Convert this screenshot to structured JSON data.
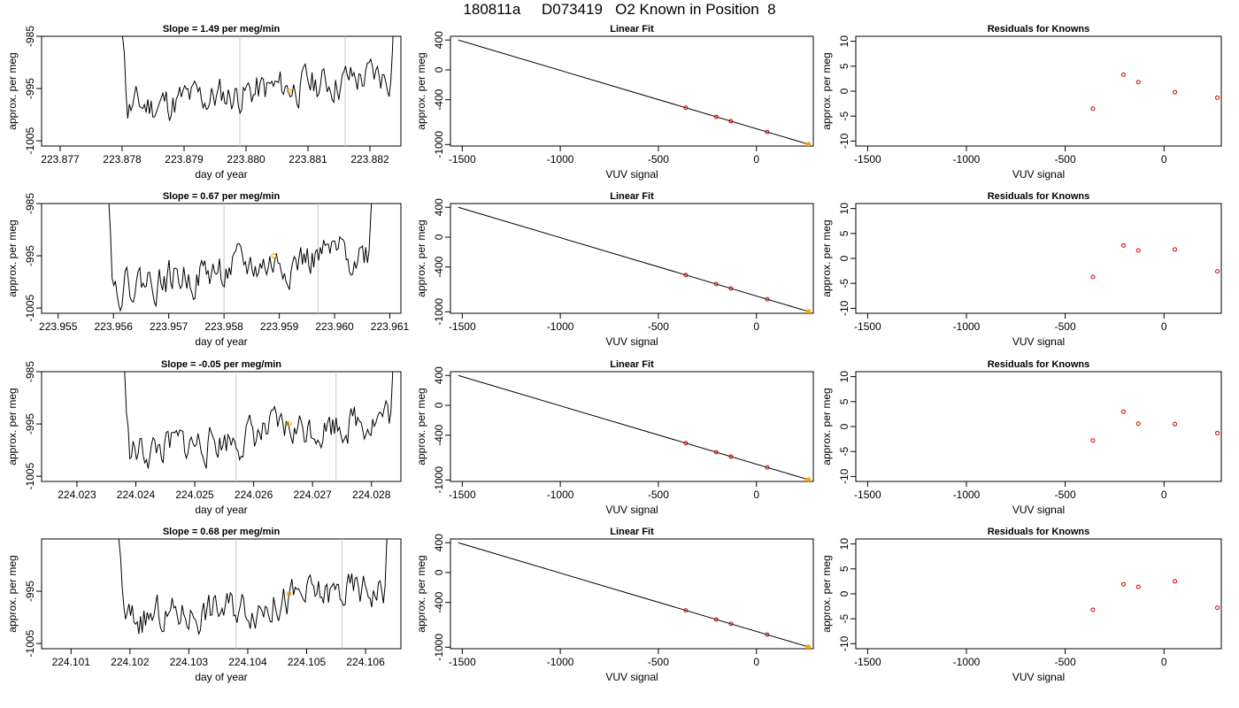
{
  "title": "180811a     D073419   O2 Known in Position  8",
  "colors": {
    "trace": "#000000",
    "gridline": "#c8c8c8",
    "marker": "#ffa500",
    "known": "#cc0000"
  },
  "chart_data": [
    {
      "type": "line",
      "panel": "timeseries-1",
      "title": "Slope =  1.49  per meg/min",
      "xlabel": "day of year",
      "ylabel": "approx. per meg",
      "x_ticks": [
        "223.877",
        "223.878",
        "223.879",
        "223.880",
        "223.881",
        "223.882"
      ],
      "xlim": [
        223.8767,
        223.8825
      ],
      "y_ticks": [
        "-985",
        "-995",
        "-1005"
      ],
      "ylim": [
        -1006,
        -985
      ],
      "windows": [
        223.8799,
        223.8816
      ],
      "marker": [
        223.8807,
        -995.5
      ],
      "series_x": [
        223.8779,
        223.8825
      ],
      "series_low": -999,
      "series_high": -992,
      "seed": 11
    },
    {
      "type": "line",
      "panel": "linear-fit-1",
      "title": "Linear Fit",
      "xlabel": "VUV signal",
      "ylabel": "approx. per meg",
      "x_ticks": [
        "-1500",
        "-1000",
        "-500",
        "0"
      ],
      "xlim": [
        -1560,
        290
      ],
      "y_ticks": [
        "400",
        "0",
        "-400",
        "-1000"
      ],
      "ylim": [
        -1020,
        450
      ],
      "line": [
        [
          -1520,
          400
        ],
        [
          270,
          -1000
        ]
      ],
      "knowns_x": [
        -360,
        -205,
        -130,
        55
      ],
      "marker_x": 265
    },
    {
      "type": "scatter",
      "panel": "residuals-1",
      "title": "Residuals for Knowns",
      "xlabel": "VUV signal",
      "ylabel": "approx. per meg",
      "x_ticks": [
        "-1500",
        "-1000",
        "-500",
        "0"
      ],
      "xlim": [
        -1560,
        290
      ],
      "y_ticks": [
        "10",
        "5",
        "0",
        "-5",
        "-10"
      ],
      "ylim": [
        -11,
        11
      ],
      "x": [
        -360,
        -205,
        -130,
        55,
        270
      ],
      "y": [
        -3.5,
        3.3,
        1.8,
        -0.2,
        -1.3
      ]
    },
    {
      "type": "line",
      "panel": "timeseries-2",
      "title": "Slope =  0.67  per meg/min",
      "xlabel": "day of year",
      "ylabel": "approx. per meg",
      "x_ticks": [
        "223.955",
        "223.956",
        "223.957",
        "223.958",
        "223.959",
        "223.960",
        "223.961"
      ],
      "xlim": [
        223.9547,
        223.9612
      ],
      "y_ticks": [
        "-985",
        "-995",
        "-1005"
      ],
      "ylim": [
        -1006,
        -985
      ],
      "windows": [
        223.958,
        223.9597
      ],
      "marker": [
        223.9589,
        -995
      ],
      "series_x": [
        223.9558,
        223.9608
      ],
      "series_low": -1001,
      "series_high": -994,
      "seed": 22
    },
    {
      "type": "line",
      "panel": "linear-fit-2",
      "title": "Linear Fit",
      "xlabel": "VUV signal",
      "ylabel": "approx. per meg",
      "x_ticks": [
        "-1500",
        "-1000",
        "-500",
        "0"
      ],
      "xlim": [
        -1560,
        290
      ],
      "y_ticks": [
        "400",
        "0",
        "-400",
        "-1000"
      ],
      "ylim": [
        -1020,
        450
      ],
      "line": [
        [
          -1520,
          400
        ],
        [
          270,
          -1000
        ]
      ],
      "knowns_x": [
        -360,
        -205,
        -130,
        55
      ],
      "marker_x": 265
    },
    {
      "type": "scatter",
      "panel": "residuals-2",
      "title": "Residuals for Knowns",
      "xlabel": "VUV signal",
      "ylabel": "approx. per meg",
      "x_ticks": [
        "-1500",
        "-1000",
        "-500",
        "0"
      ],
      "xlim": [
        -1560,
        290
      ],
      "y_ticks": [
        "10",
        "5",
        "0",
        "-5",
        "-10"
      ],
      "ylim": [
        -11,
        11
      ],
      "x": [
        -360,
        -205,
        -130,
        55,
        270
      ],
      "y": [
        -3.7,
        2.6,
        1.6,
        1.8,
        -2.6
      ]
    },
    {
      "type": "line",
      "panel": "timeseries-3",
      "title": "Slope =  -0.05  per meg/min",
      "xlabel": "day of year",
      "ylabel": "approx. per meg",
      "x_ticks": [
        "224.023",
        "224.024",
        "224.025",
        "224.026",
        "224.027",
        "224.028"
      ],
      "xlim": [
        224.0224,
        224.0285
      ],
      "y_ticks": [
        "-985",
        "-995",
        "-1005"
      ],
      "ylim": [
        -1006,
        -985
      ],
      "windows": [
        224.0257,
        224.0274
      ],
      "marker": [
        224.0266,
        -995
      ],
      "series_x": [
        224.0237,
        224.0285
      ],
      "series_low": -1001,
      "series_high": -993,
      "seed": 33
    },
    {
      "type": "line",
      "panel": "linear-fit-3",
      "title": "Linear Fit",
      "xlabel": "VUV signal",
      "ylabel": "approx. per meg",
      "x_ticks": [
        "-1500",
        "-1000",
        "-500",
        "0"
      ],
      "xlim": [
        -1560,
        290
      ],
      "y_ticks": [
        "400",
        "0",
        "-400",
        "-1000"
      ],
      "ylim": [
        -1020,
        450
      ],
      "line": [
        [
          -1520,
          400
        ],
        [
          270,
          -1000
        ]
      ],
      "knowns_x": [
        -360,
        -205,
        -130,
        55
      ],
      "marker_x": 265
    },
    {
      "type": "scatter",
      "panel": "residuals-3",
      "title": "Residuals for Knowns",
      "xlabel": "VUV signal",
      "ylabel": "approx. per meg",
      "x_ticks": [
        "-1500",
        "-1000",
        "-500",
        "0"
      ],
      "xlim": [
        -1560,
        290
      ],
      "y_ticks": [
        "10",
        "5",
        "0",
        "-5",
        "-10"
      ],
      "ylim": [
        -11,
        11
      ],
      "x": [
        -360,
        -205,
        -130,
        55,
        270
      ],
      "y": [
        -2.8,
        3.0,
        0.6,
        0.5,
        -1.3
      ]
    },
    {
      "type": "line",
      "panel": "timeseries-4",
      "title": "Slope =  0.68  per meg/min",
      "xlabel": "day of year",
      "ylabel": "approx. per meg",
      "x_ticks": [
        "224.101",
        "224.102",
        "224.103",
        "224.104",
        "224.105",
        "224.106"
      ],
      "xlim": [
        224.1005,
        224.1066
      ],
      "y_ticks": [
        "-995",
        "-1005"
      ],
      "ylim": [
        -1006,
        -985
      ],
      "windows": [
        224.1038,
        224.1056
      ],
      "marker": [
        224.1047,
        -995.5
      ],
      "series_x": [
        224.1017,
        224.1065
      ],
      "series_low": -1001,
      "series_high": -994,
      "seed": 44
    },
    {
      "type": "line",
      "panel": "linear-fit-4",
      "title": "Linear Fit",
      "xlabel": "VUV signal",
      "ylabel": "approx. per meg",
      "x_ticks": [
        "-1500",
        "-1000",
        "-500",
        "0"
      ],
      "xlim": [
        -1560,
        290
      ],
      "y_ticks": [
        "400",
        "0",
        "-400",
        "-1000"
      ],
      "ylim": [
        -1020,
        450
      ],
      "line": [
        [
          -1520,
          400
        ],
        [
          270,
          -1000
        ]
      ],
      "knowns_x": [
        -360,
        -205,
        -130,
        55
      ],
      "marker_x": 265
    },
    {
      "type": "scatter",
      "panel": "residuals-4",
      "title": "Residuals for Knowns",
      "xlabel": "VUV signal",
      "ylabel": "approx. per meg",
      "x_ticks": [
        "-1500",
        "-1000",
        "-500",
        "0"
      ],
      "xlim": [
        -1560,
        290
      ],
      "y_ticks": [
        "10",
        "5",
        "0",
        "-5",
        "-10"
      ],
      "ylim": [
        -11,
        11
      ],
      "x": [
        -360,
        -205,
        -130,
        55,
        270
      ],
      "y": [
        -3.2,
        1.9,
        1.4,
        2.5,
        -2.8
      ]
    }
  ]
}
